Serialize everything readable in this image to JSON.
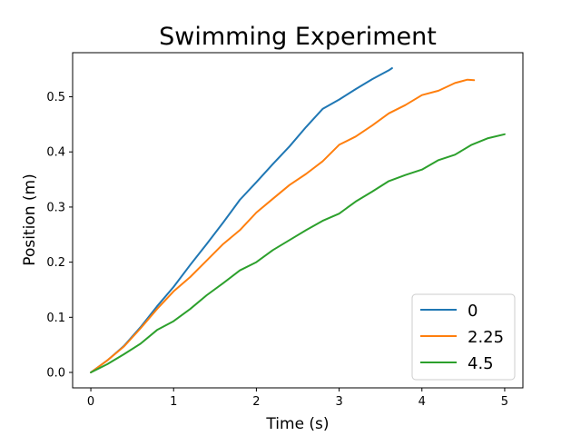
{
  "chart_data": {
    "type": "line",
    "title": "Swimming Experiment",
    "xlabel": "Time (s)",
    "ylabel": "Position (m)",
    "xlim": [
      -0.22,
      5.22
    ],
    "ylim": [
      -0.028,
      0.58
    ],
    "xticks": [
      0,
      1,
      2,
      3,
      4,
      5
    ],
    "yticks": [
      0.0,
      0.1,
      0.2,
      0.3,
      0.4,
      0.5
    ],
    "xtick_labels": [
      "0",
      "1",
      "2",
      "3",
      "4",
      "5"
    ],
    "ytick_labels": [
      "0.0",
      "0.1",
      "0.2",
      "0.3",
      "0.4",
      "0.5"
    ],
    "grid": false,
    "legend_position": "lower-right",
    "series": [
      {
        "name": "0",
        "color": "#1f77b4",
        "x": [
          0,
          0.2,
          0.4,
          0.6,
          0.8,
          1.0,
          1.2,
          1.4,
          1.6,
          1.8,
          2.0,
          2.2,
          2.4,
          2.6,
          2.8,
          3.0,
          3.2,
          3.4,
          3.6,
          3.64
        ],
        "y": [
          0.0,
          0.022,
          0.048,
          0.082,
          0.12,
          0.155,
          0.195,
          0.233,
          0.272,
          0.313,
          0.345,
          0.378,
          0.41,
          0.445,
          0.478,
          0.495,
          0.514,
          0.532,
          0.548,
          0.552
        ]
      },
      {
        "name": "2.25",
        "color": "#ff7f0e",
        "x": [
          0,
          0.2,
          0.4,
          0.6,
          0.8,
          1.0,
          1.2,
          1.4,
          1.6,
          1.8,
          2.0,
          2.2,
          2.4,
          2.6,
          2.8,
          3.0,
          3.2,
          3.4,
          3.6,
          3.8,
          4.0,
          4.2,
          4.4,
          4.55,
          4.63
        ],
        "y": [
          0.0,
          0.022,
          0.047,
          0.08,
          0.115,
          0.147,
          0.173,
          0.203,
          0.233,
          0.258,
          0.29,
          0.315,
          0.34,
          0.36,
          0.383,
          0.413,
          0.428,
          0.448,
          0.47,
          0.485,
          0.503,
          0.511,
          0.525,
          0.531,
          0.53
        ]
      },
      {
        "name": "4.5",
        "color": "#2ca02c",
        "x": [
          0,
          0.2,
          0.4,
          0.6,
          0.8,
          1.0,
          1.2,
          1.4,
          1.6,
          1.8,
          2.0,
          2.2,
          2.4,
          2.6,
          2.8,
          3.0,
          3.2,
          3.4,
          3.6,
          3.8,
          4.0,
          4.2,
          4.4,
          4.6,
          4.8,
          5.0
        ],
        "y": [
          0.0,
          0.015,
          0.033,
          0.052,
          0.077,
          0.093,
          0.115,
          0.14,
          0.162,
          0.185,
          0.2,
          0.222,
          0.24,
          0.258,
          0.275,
          0.288,
          0.31,
          0.328,
          0.347,
          0.358,
          0.368,
          0.385,
          0.395,
          0.413,
          0.425,
          0.432
        ]
      }
    ]
  }
}
